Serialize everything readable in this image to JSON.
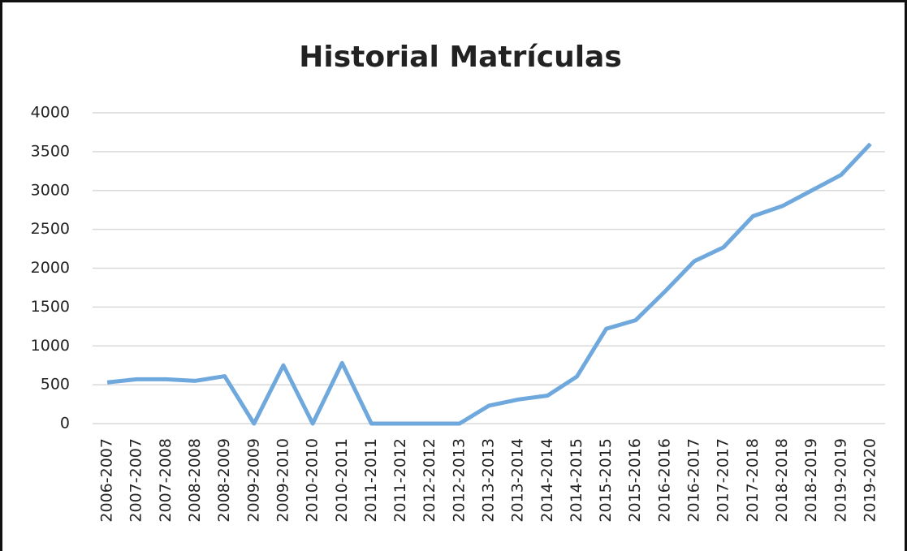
{
  "chart_data": {
    "type": "line",
    "title": "Historial Matrículas",
    "categories": [
      "2006-2007",
      "2007-2007",
      "2007-2008",
      "2008-2008",
      "2008-2009",
      "2009-2009",
      "2009-2010",
      "2010-2010",
      "2010-2011",
      "2011-2011",
      "2011-2012",
      "2012-2012",
      "2012-2013",
      "2013-2013",
      "2013-2014",
      "2014-2014",
      "2014-2015",
      "2015-2015",
      "2015-2016",
      "2016-2016",
      "2016-2017",
      "2017-2017",
      "2017-2018",
      "2018-2018",
      "2018-2019",
      "2019-2019",
      "2019-2020"
    ],
    "values": [
      530,
      570,
      570,
      550,
      610,
      0,
      750,
      0,
      780,
      0,
      0,
      0,
      0,
      230,
      310,
      360,
      605,
      1220,
      1330,
      1700,
      2090,
      2270,
      2670,
      2800,
      3000,
      3200,
      3600
    ],
    "color": "#6fa8dc",
    "ylim": [
      0,
      4000
    ],
    "yticks": [
      0,
      500,
      1000,
      1500,
      2000,
      2500,
      3000,
      3500,
      4000
    ],
    "grid": true
  }
}
